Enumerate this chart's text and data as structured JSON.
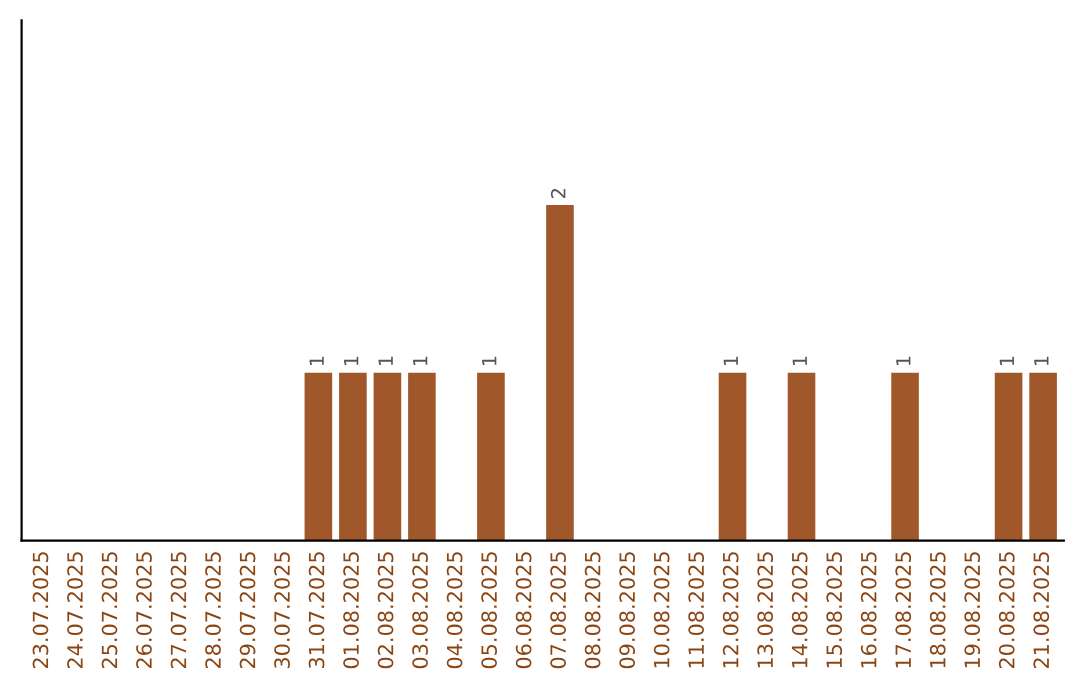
{
  "chart_data": {
    "type": "bar",
    "categories": [
      "23.07.2025",
      "24.07.2025",
      "25.07.2025",
      "26.07.2025",
      "27.07.2025",
      "28.07.2025",
      "29.07.2025",
      "30.07.2025",
      "31.07.2025",
      "01.08.2025",
      "02.08.2025",
      "03.08.2025",
      "04.08.2025",
      "05.08.2025",
      "06.08.2025",
      "07.08.2025",
      "08.08.2025",
      "09.08.2025",
      "10.08.2025",
      "11.08.2025",
      "12.08.2025",
      "13.08.2025",
      "14.08.2025",
      "15.08.2025",
      "16.08.2025",
      "17.08.2025",
      "18.08.2025",
      "19.08.2025",
      "20.08.2025",
      "21.08.2025"
    ],
    "values": [
      0,
      0,
      0,
      0,
      0,
      0,
      0,
      0,
      1,
      1,
      1,
      1,
      0,
      1,
      0,
      2,
      0,
      0,
      0,
      0,
      1,
      0,
      1,
      0,
      0,
      1,
      0,
      0,
      1,
      1
    ],
    "value_labels": [
      null,
      null,
      null,
      null,
      null,
      null,
      null,
      null,
      "1",
      "1",
      "1",
      "1",
      null,
      "1",
      null,
      "2",
      null,
      null,
      null,
      null,
      "1",
      null,
      "1",
      null,
      null,
      "1",
      null,
      null,
      "1",
      "1"
    ],
    "color": "#a0582a",
    "tick_labels": "x",
    "grid": false,
    "legend": false
  }
}
